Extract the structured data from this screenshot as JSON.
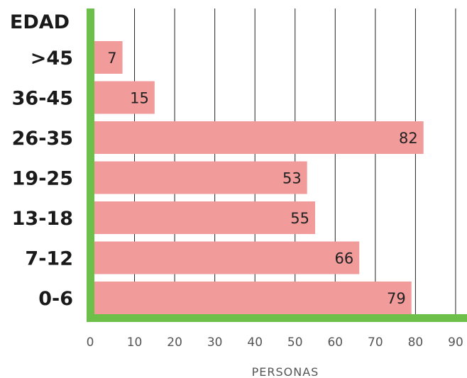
{
  "chart_data": {
    "type": "bar",
    "orientation": "horizontal",
    "title": "",
    "ylabel": "EDAD",
    "xlabel": "PERSONAS",
    "categories": [
      ">45",
      "36-45",
      "26-35",
      "19-25",
      "13-18",
      "7-12",
      "0-6"
    ],
    "values": [
      7,
      15,
      82,
      53,
      55,
      66,
      79
    ],
    "xlim": [
      0,
      90
    ],
    "xticks": [
      0,
      10,
      20,
      30,
      40,
      50,
      60,
      70,
      80,
      90
    ],
    "grid": true,
    "legend": "none",
    "colors": {
      "bar": "#F29B9B",
      "axis": "#6CC04A",
      "grid": "#222222"
    }
  }
}
